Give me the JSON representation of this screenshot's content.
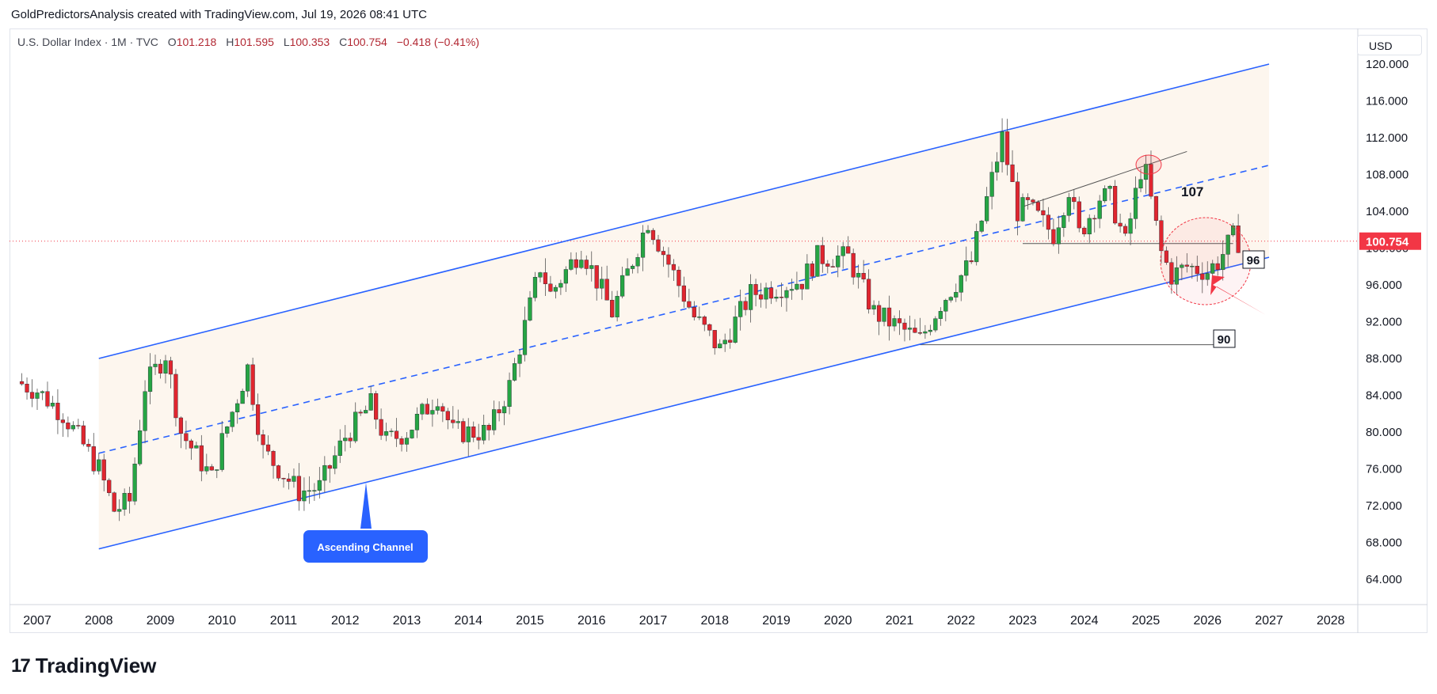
{
  "header": {
    "author_line": "GoldPredictorsAnalysis created with TradingView.com, Jul 19, 2026 08:41 UTC"
  },
  "legend": {
    "symbol": "U.S. Dollar Index · 1M · TVC",
    "open_label": "O",
    "open": "101.218",
    "high_label": "H",
    "high": "101.595",
    "low_label": "L",
    "low": "100.353",
    "close_label": "C",
    "close": "100.754",
    "change": "−0.418 (−0.41%)"
  },
  "currency_button": "USD",
  "footer": {
    "brand": "TradingView",
    "mark": "17"
  },
  "colors": {
    "up": "#26a544",
    "down": "#e0262f",
    "channel": "#2962ff",
    "channel_fill": "#fdf6ee",
    "price_line": "#f23645",
    "grid": "#f0f3fa"
  },
  "chart_data": {
    "type": "candlestick",
    "title": "U.S. Dollar Index · 1M · TVC",
    "x_axis": {
      "type": "time",
      "tick_labels": [
        "2007",
        "2008",
        "2009",
        "2010",
        "2011",
        "2012",
        "2013",
        "2014",
        "2015",
        "2016",
        "2017",
        "2018",
        "2019",
        "2020",
        "2021",
        "2022",
        "2023",
        "2024",
        "2025",
        "2026",
        "2027",
        "2028"
      ]
    },
    "y_axis": {
      "tick_labels": [
        "64.000",
        "68.000",
        "72.000",
        "76.000",
        "80.000",
        "84.000",
        "88.000",
        "92.000",
        "96.000",
        "100.000",
        "104.000",
        "108.000",
        "112.000",
        "116.000",
        "120.000"
      ],
      "range": [
        60.5,
        121.5
      ]
    },
    "last_price": "100.754",
    "price_path": [
      [
        "2006-09",
        85.5
      ],
      [
        "2007-01",
        84.5
      ],
      [
        "2007-06",
        82
      ],
      [
        "2008-01",
        76
      ],
      [
        "2008-04",
        71.5
      ],
      [
        "2008-07",
        72.5
      ],
      [
        "2008-10",
        85
      ],
      [
        "2009-02",
        88.5
      ],
      [
        "2009-05",
        80
      ],
      [
        "2009-11",
        75
      ],
      [
        "2010-01",
        79
      ],
      [
        "2010-06",
        87
      ],
      [
        "2010-09",
        78
      ],
      [
        "2011-04",
        73.5
      ],
      [
        "2011-08",
        74
      ],
      [
        "2012-01",
        79.5
      ],
      [
        "2012-06",
        83
      ],
      [
        "2012-09",
        79
      ],
      [
        "2013-01",
        80
      ],
      [
        "2013-07",
        84
      ],
      [
        "2013-10",
        80
      ],
      [
        "2014-05",
        80
      ],
      [
        "2014-09",
        85
      ],
      [
        "2015-03",
        98
      ],
      [
        "2015-05",
        95
      ],
      [
        "2015-11",
        100
      ],
      [
        "2016-05",
        93
      ],
      [
        "2016-12",
        103
      ],
      [
        "2017-06",
        96
      ],
      [
        "2017-09",
        92.5
      ],
      [
        "2018-02",
        89
      ],
      [
        "2018-08",
        95
      ],
      [
        "2019-06",
        96.5
      ],
      [
        "2019-09",
        99
      ],
      [
        "2020-03",
        99
      ],
      [
        "2020-08",
        93
      ],
      [
        "2021-05",
        90
      ],
      [
        "2021-09",
        94
      ],
      [
        "2022-03",
        98.5
      ],
      [
        "2022-09",
        112
      ],
      [
        "2022-12",
        104
      ],
      [
        "2023-02",
        104.5
      ],
      [
        "2023-07",
        101.5
      ],
      [
        "2023-10",
        106.5
      ],
      [
        "2023-12",
        101.5
      ],
      [
        "2024-04",
        105.5
      ],
      [
        "2024-06",
        105.5
      ],
      [
        "2024-09",
        100.5
      ],
      [
        "2024-12",
        108.5
      ],
      [
        "2025-01",
        108
      ],
      [
        "2025-04",
        99.5
      ],
      [
        "2025-06",
        97
      ],
      [
        "2025-09",
        98
      ],
      [
        "2026-01",
        97.5
      ],
      [
        "2026-03",
        98.5
      ],
      [
        "2026-06",
        101.2
      ],
      [
        "2026-07",
        100.754
      ]
    ],
    "candles_approximated": true,
    "annotations": [
      {
        "kind": "callout",
        "text": "Ascending Channel"
      },
      {
        "kind": "level_label",
        "text": "107"
      },
      {
        "kind": "level_box",
        "text": "96"
      },
      {
        "kind": "level_box",
        "text": "90"
      },
      {
        "kind": "channel",
        "name": "Ascending Channel upper",
        "points": [
          [
            "2008-01",
            88
          ],
          [
            "2027-01",
            120
          ]
        ]
      },
      {
        "kind": "channel",
        "name": "Ascending Channel lower",
        "points": [
          [
            "2008-01",
            67.3
          ],
          [
            "2027-01",
            99
          ]
        ]
      },
      {
        "kind": "channel_mid",
        "style": "dashed",
        "points": [
          [
            "2008-01",
            77.7
          ],
          [
            "2027-01",
            109
          ]
        ]
      }
    ],
    "grid": true
  }
}
